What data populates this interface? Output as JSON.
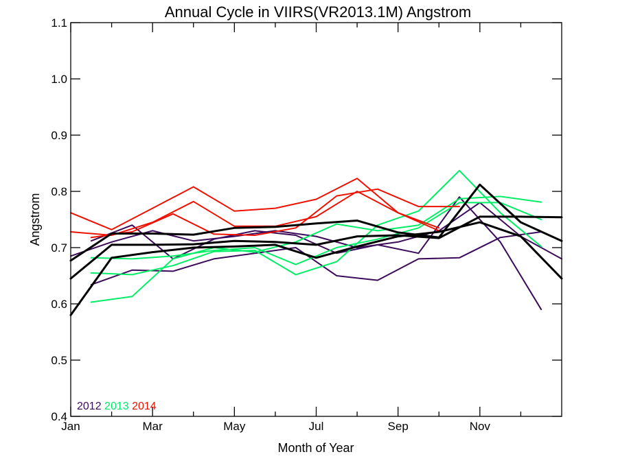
{
  "chart_data": {
    "type": "line",
    "title": "Annual Cycle in VIIRS(VR2013.1M) Angstrom",
    "xlabel": "Month of Year",
    "ylabel": "Angstrom",
    "xlim": [
      1,
      13
    ],
    "ylim": [
      0.4,
      1.1
    ],
    "x_ticks": [
      {
        "value": 1,
        "label": "Jan"
      },
      {
        "value": 3,
        "label": "Mar"
      },
      {
        "value": 5,
        "label": "May"
      },
      {
        "value": 7,
        "label": "Jul"
      },
      {
        "value": 9,
        "label": "Sep"
      },
      {
        "value": 11,
        "label": "Nov"
      }
    ],
    "x_minor_ticks": [
      2,
      4,
      6,
      8,
      10,
      12
    ],
    "y_ticks": [
      {
        "value": 0.4,
        "label": "0.4"
      },
      {
        "value": 0.5,
        "label": "0.5"
      },
      {
        "value": 0.6,
        "label": "0.6"
      },
      {
        "value": 0.7,
        "label": "0.7"
      },
      {
        "value": 0.8,
        "label": "0.8"
      },
      {
        "value": 0.9,
        "label": "0.9"
      },
      {
        "value": 1.0,
        "label": "1.0"
      },
      {
        "value": 1.1,
        "label": "1.1"
      }
    ],
    "grid": false,
    "legend_position": "bottom-left",
    "legend": [
      {
        "label": "2012",
        "color": "#3c0a5a"
      },
      {
        "label": "2013",
        "color": "#00ee66"
      },
      {
        "label": "2014",
        "color": "#ee1100"
      }
    ],
    "series": [
      {
        "color": "#3c0a5a",
        "width": 2,
        "x": [
          1,
          2,
          3,
          4,
          5,
          6,
          7,
          8,
          9,
          10,
          11,
          12,
          13
        ],
        "y": [
          0.685,
          0.71,
          0.73,
          0.712,
          0.72,
          0.73,
          0.72,
          0.7,
          0.71,
          0.73,
          0.78,
          0.72,
          0.68
        ]
      },
      {
        "color": "#3c0a5a",
        "width": 2,
        "x": [
          1.5,
          2.5,
          3.5,
          4.5,
          5.5,
          6.5,
          7.5,
          8.5,
          9.5,
          10.5,
          11.5,
          12.5
        ],
        "y": [
          0.712,
          0.74,
          0.68,
          0.715,
          0.73,
          0.722,
          0.69,
          0.705,
          0.69,
          0.79,
          0.71,
          0.59
        ]
      },
      {
        "color": "#3c0a5a",
        "width": 2,
        "x": [
          1.5,
          2.5,
          3.5,
          4.5,
          5.5,
          6.5,
          7.5,
          8.5,
          9.5,
          10.5,
          11.5,
          12.5
        ],
        "y": [
          0.634,
          0.66,
          0.658,
          0.68,
          0.69,
          0.7,
          0.65,
          0.642,
          0.68,
          0.682,
          0.718,
          0.728
        ]
      },
      {
        "color": "#00ee66",
        "width": 2,
        "x": [
          1.5,
          2.5,
          3.5,
          4.5,
          5.5,
          6.5,
          7.5,
          8.5,
          9.5,
          10.5,
          11.5,
          12.5
        ],
        "y": [
          0.603,
          0.613,
          0.68,
          0.7,
          0.692,
          0.71,
          0.742,
          0.73,
          0.74,
          0.787,
          0.791,
          0.781
        ]
      },
      {
        "color": "#00ee66",
        "width": 2,
        "x": [
          1.5,
          2.5,
          3.5,
          4.5,
          5.5,
          6.5,
          7.5,
          8.5,
          9.5,
          10.5,
          11.5,
          12.5
        ],
        "y": [
          0.655,
          0.652,
          0.668,
          0.693,
          0.695,
          0.652,
          0.675,
          0.74,
          0.765,
          0.837,
          0.762,
          0.702
        ]
      },
      {
        "color": "#00ee66",
        "width": 2,
        "x": [
          1.5,
          2.5,
          3.5,
          4.5,
          5.5,
          6.5,
          7.5,
          8.5,
          9.5,
          10.5,
          11.5,
          12.5
        ],
        "y": [
          0.682,
          0.68,
          0.685,
          0.695,
          0.7,
          0.67,
          0.7,
          0.715,
          0.735,
          0.78,
          0.78,
          0.75
        ]
      },
      {
        "color": "#ee1100",
        "width": 2,
        "x": [
          1,
          2,
          3,
          4,
          5,
          6,
          7,
          8,
          9,
          10
        ],
        "y": [
          0.762,
          0.732,
          0.77,
          0.808,
          0.765,
          0.77,
          0.786,
          0.823,
          0.762,
          0.73
        ]
      },
      {
        "color": "#ee1100",
        "width": 2,
        "x": [
          1,
          2,
          3,
          4,
          5,
          6,
          7,
          8,
          9,
          10
        ],
        "y": [
          0.728,
          0.722,
          0.745,
          0.782,
          0.738,
          0.738,
          0.755,
          0.8,
          0.762,
          0.735
        ]
      },
      {
        "color": "#ee1100",
        "width": 2,
        "x": [
          1.5,
          2.5,
          3.5,
          4.5,
          5.5,
          6.5,
          7.5,
          8.5,
          9.5,
          10.5
        ],
        "y": [
          0.718,
          0.728,
          0.76,
          0.724,
          0.722,
          0.735,
          0.792,
          0.804,
          0.773,
          0.773
        ]
      },
      {
        "color": "#000000",
        "width": 3,
        "x": [
          1,
          2,
          3,
          4,
          5,
          6,
          7,
          8,
          9,
          10,
          11,
          12,
          13
        ],
        "y": [
          0.677,
          0.725,
          0.725,
          0.723,
          0.735,
          0.737,
          0.743,
          0.748,
          0.727,
          0.718,
          0.812,
          0.745,
          0.712
        ]
      },
      {
        "color": "#000000",
        "width": 3,
        "x": [
          1,
          2,
          3,
          4,
          5,
          6,
          7,
          8,
          9,
          10,
          11,
          12,
          13
        ],
        "y": [
          0.645,
          0.705,
          0.705,
          0.706,
          0.712,
          0.71,
          0.705,
          0.72,
          0.722,
          0.717,
          0.755,
          0.755,
          0.754
        ]
      },
      {
        "color": "#000000",
        "width": 3,
        "x": [
          1,
          2,
          3,
          4,
          5,
          6,
          7,
          8,
          9,
          10,
          11,
          12,
          13
        ],
        "y": [
          0.58,
          0.682,
          0.692,
          0.7,
          0.702,
          0.705,
          0.682,
          0.702,
          0.72,
          0.728,
          0.745,
          0.72,
          0.645
        ]
      }
    ]
  }
}
